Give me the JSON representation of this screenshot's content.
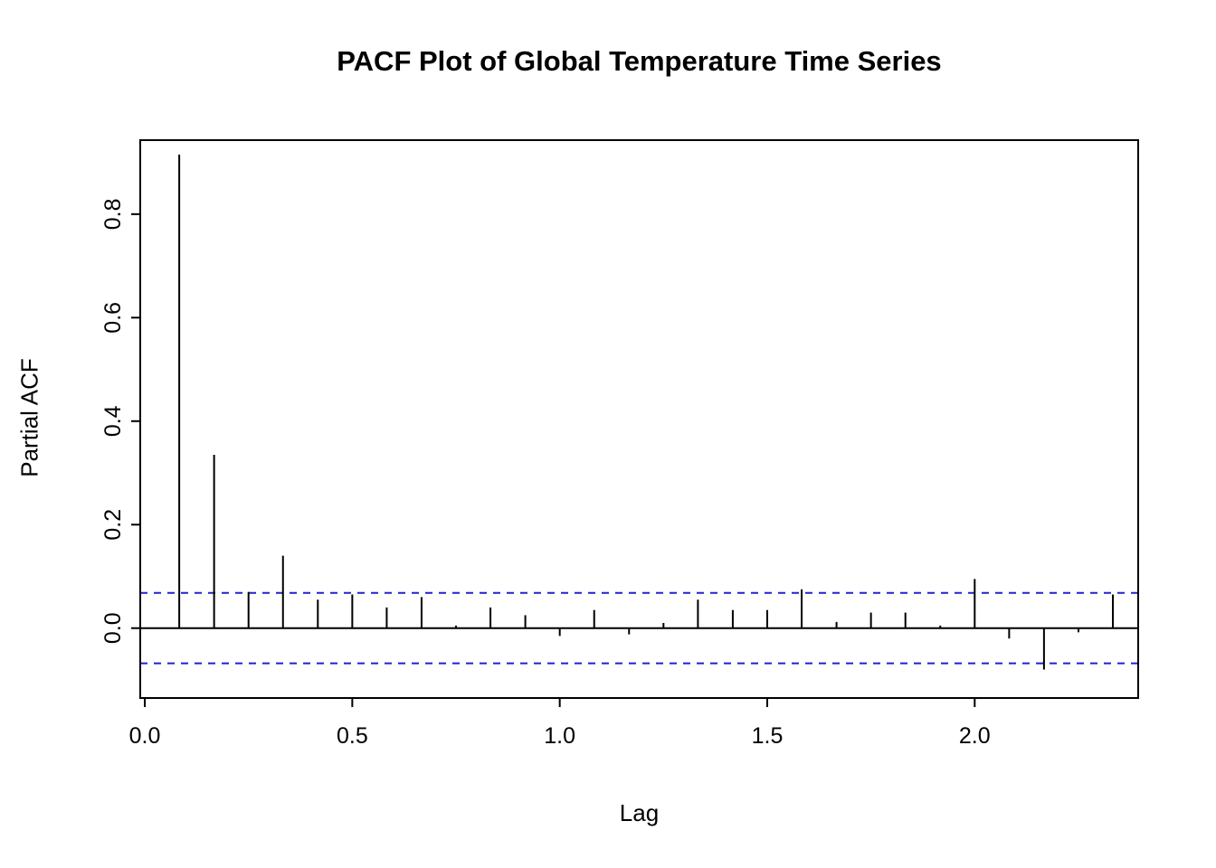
{
  "page": {
    "background": "#ffffff"
  },
  "chart_data": {
    "type": "bar",
    "title": "PACF Plot of Global Temperature Time Series",
    "xlabel": "Lag",
    "ylabel": "Partial ACF",
    "x": [
      0.083,
      0.167,
      0.25,
      0.333,
      0.417,
      0.5,
      0.583,
      0.667,
      0.75,
      0.833,
      0.917,
      1.0,
      1.083,
      1.167,
      1.25,
      1.333,
      1.417,
      1.5,
      1.583,
      1.667,
      1.75,
      1.833,
      1.917,
      2.0,
      2.083,
      2.167,
      2.25,
      2.333
    ],
    "values": [
      0.915,
      0.335,
      0.07,
      0.14,
      0.055,
      0.065,
      0.04,
      0.06,
      0.005,
      0.04,
      0.025,
      -0.015,
      0.035,
      -0.012,
      0.01,
      0.055,
      0.035,
      0.035,
      0.075,
      0.012,
      0.03,
      0.03,
      0.005,
      0.095,
      -0.02,
      -0.08,
      -0.008,
      0.065
    ],
    "conf_upper": 0.068,
    "conf_lower": -0.068,
    "conf_color": "#2222cc",
    "bar_color": "#000000",
    "axis_color": "#000000",
    "xlim": [
      -0.011,
      2.394
    ],
    "ylim": [
      -0.135,
      0.943
    ],
    "xticks": [
      0.0,
      0.5,
      1.0,
      1.5,
      2.0
    ],
    "xtick_labels": [
      "0.0",
      "0.5",
      "1.0",
      "1.5",
      "2.0"
    ],
    "yticks": [
      0.0,
      0.2,
      0.4,
      0.6,
      0.8
    ],
    "ytick_labels": [
      "0.0",
      "0.2",
      "0.4",
      "0.6",
      "0.8"
    ],
    "grid": false,
    "legend": "none"
  }
}
